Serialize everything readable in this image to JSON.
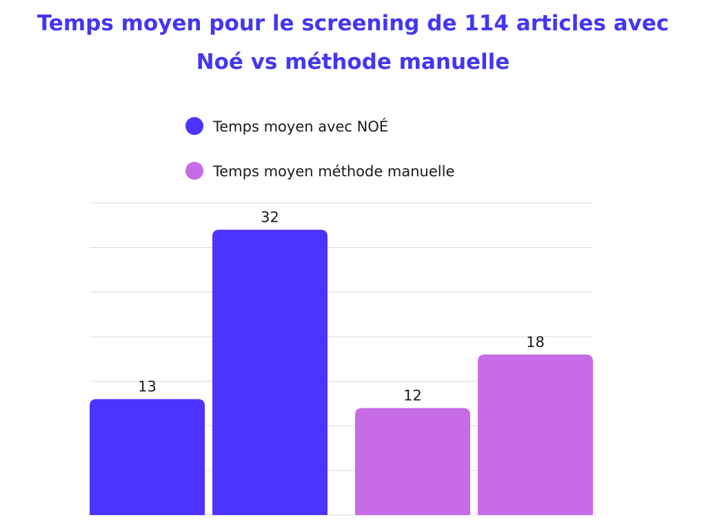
{
  "chart_data": {
    "type": "bar",
    "title": "Temps moyen pour le screening de 114 articles avec Noé vs méthode manuelle",
    "xlabel": "",
    "ylabel": "",
    "ylim": [
      0,
      35
    ],
    "grid": true,
    "legend_position": "top-center",
    "bars": [
      {
        "value": 13,
        "series": 0
      },
      {
        "value": 32,
        "series": 0
      },
      {
        "value": 12,
        "series": 1
      },
      {
        "value": 18,
        "series": 1
      }
    ],
    "series": [
      {
        "name": "Temps moyen avec NOÉ",
        "color": "#4d33ff"
      },
      {
        "name": "Temps moyen méthode manuelle",
        "color": "#c76be6"
      }
    ]
  }
}
